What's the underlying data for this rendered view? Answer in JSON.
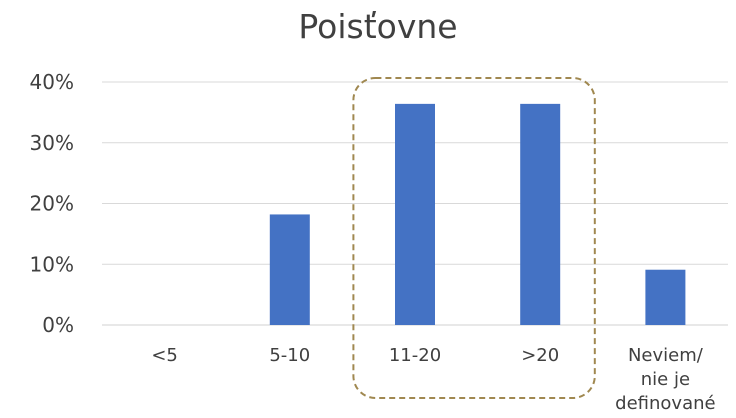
{
  "chart_data": {
    "type": "bar",
    "title": "Poisťovne",
    "xlabel": "",
    "ylabel": "",
    "categories": [
      "<5",
      "5-10",
      "11-20",
      ">20",
      "Neviem/ nie je definované"
    ],
    "category_lines": [
      [
        "<5"
      ],
      [
        "5-10"
      ],
      [
        "11-20"
      ],
      [
        ">20"
      ],
      [
        "Neviem/",
        "nie je",
        "definované"
      ]
    ],
    "values": [
      0,
      18.2,
      36.4,
      36.4,
      9.1
    ],
    "value_unit": "%",
    "ylim": [
      0,
      40
    ],
    "yticks": [
      "0%",
      "10%",
      "20%",
      "30%",
      "40%"
    ],
    "grid": true,
    "legend": "none",
    "bar_color": "#4472c4",
    "highlight": {
      "categories": [
        "11-20",
        ">20"
      ],
      "style": "dashed rounded box",
      "color": "#a08850"
    }
  }
}
